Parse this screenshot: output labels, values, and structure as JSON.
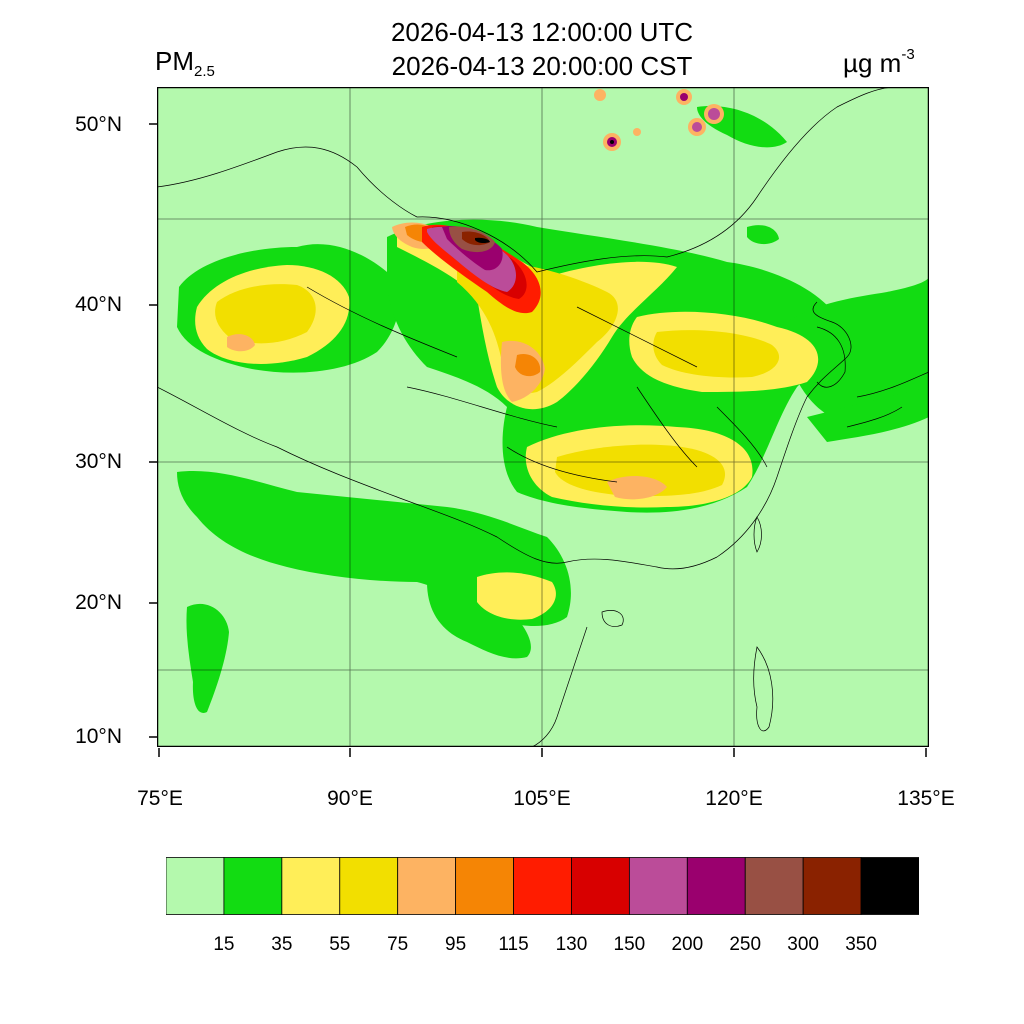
{
  "header": {
    "time_utc": "2026-04-13 12:00:00 UTC",
    "time_cst": "2026-04-13 20:00:00 CST",
    "variable": "PM",
    "variable_sub": "2.5",
    "units": "µg m",
    "units_sup": "-3"
  },
  "axes": {
    "lat_labels": [
      "50°N",
      "40°N",
      "30°N",
      "20°N",
      "10°N"
    ],
    "lon_labels": [
      "75°E",
      "90°E",
      "105°E",
      "120°E",
      "135°E"
    ]
  },
  "legend": {
    "labels": [
      "15",
      "35",
      "55",
      "75",
      "95",
      "115",
      "130",
      "150",
      "200",
      "250",
      "300",
      "350"
    ],
    "colors": [
      "#b4f9ad",
      "#12dc12",
      "#ffee58",
      "#f2df00",
      "#fdb362",
      "#f58505",
      "#ff1c00",
      "#d80000",
      "#bb4c99",
      "#9a006e",
      "#985044",
      "#8a2200",
      "#000000"
    ]
  },
  "map_style": {
    "background": "#b4f9ad",
    "grid_color": "#000000",
    "boundary_color": "#000000"
  }
}
